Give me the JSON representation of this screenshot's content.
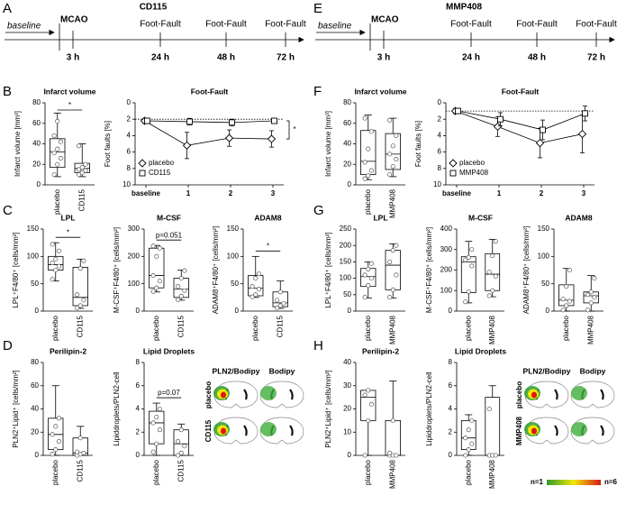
{
  "panels": [
    "A",
    "B",
    "C",
    "D",
    "E",
    "F",
    "G",
    "H"
  ],
  "timelines": [
    {
      "title": "CD115",
      "baseline": "baseline",
      "event": "MCAO",
      "early": "3 h",
      "tests": [
        "Foot-Fault",
        "Foot-Fault",
        "Foot-Fault"
      ],
      "times": [
        "24 h",
        "48 h",
        "72 h"
      ]
    },
    {
      "title": "MMP408",
      "baseline": "baseline",
      "event": "MCAO",
      "early": "3 h",
      "tests": [
        "Foot-Fault",
        "Foot-Fault",
        "Foot-Fault"
      ],
      "times": [
        "24 h",
        "48 h",
        "72 h"
      ]
    }
  ],
  "heatmaps": [
    {
      "columns": [
        "PLN2/Bodipy",
        "Bodipy"
      ],
      "rows": [
        "placebo",
        "CD115"
      ]
    },
    {
      "columns": [
        "PLN2/Bodipy",
        "Bodipy"
      ],
      "rows": [
        "placebo",
        "MMP408"
      ],
      "colorbar": [
        "n=1",
        "n=6"
      ]
    }
  ],
  "chart_data": [
    {
      "type": "box",
      "title": "Infarct volume",
      "ylabel": "Infarct volume [mm³]",
      "categories": [
        "placebo",
        "CD115"
      ],
      "ylim": [
        0,
        80
      ],
      "yticks": [
        0,
        20,
        40,
        60,
        80
      ],
      "annotation": "*",
      "boxes": [
        {
          "min": 8,
          "q1": 17,
          "median": 32,
          "q3": 45,
          "max": 70,
          "points": [
            10,
            20,
            26,
            31,
            35,
            42,
            48,
            62
          ]
        },
        {
          "min": 8,
          "q1": 12,
          "median": 16,
          "q3": 21,
          "max": 40,
          "points": [
            10,
            12,
            14,
            15,
            17,
            20,
            38
          ]
        }
      ]
    },
    {
      "type": "line",
      "title": "Foot-Fault",
      "ylabel": "Foot faults [%]",
      "categories": [
        "baseline",
        "1",
        "2",
        "3"
      ],
      "ylim": [
        0,
        10
      ],
      "y_reversed": true,
      "yticks": [
        0,
        2,
        4,
        6,
        8,
        10
      ],
      "reference": 2,
      "annotation": "*",
      "legend": "lower left",
      "series": [
        {
          "name": "placebo",
          "marker": "diamond",
          "values": [
            2.2,
            5.2,
            4.3,
            4.4
          ],
          "errors": [
            0.3,
            1.6,
            1.0,
            1.0
          ]
        },
        {
          "name": "CD115",
          "marker": "square",
          "values": [
            2.2,
            2.3,
            2.4,
            2.2
          ],
          "errors": [
            0.3,
            0.4,
            0.4,
            0.3
          ]
        }
      ]
    },
    {
      "type": "box",
      "title": "LPL",
      "ylabel": "LPL⁺F4/80⁺ [cells/mm²]",
      "categories": [
        "placebo",
        "CD115"
      ],
      "ylim": [
        0,
        150
      ],
      "yticks": [
        0,
        50,
        100,
        150
      ],
      "annotation": "*",
      "boxes": [
        {
          "min": 55,
          "q1": 75,
          "median": 85,
          "q3": 100,
          "max": 125,
          "points": [
            58,
            75,
            82,
            88,
            95,
            110,
            122
          ]
        },
        {
          "min": 5,
          "q1": 10,
          "median": 25,
          "q3": 80,
          "max": 95,
          "points": [
            6,
            10,
            20,
            30,
            78,
            92
          ]
        }
      ]
    },
    {
      "type": "box",
      "title": "M-CSF",
      "ylabel": "M-CSF⁺F4/80⁺ [cells/mm²]",
      "categories": [
        "placebo",
        "CD115"
      ],
      "ylim": [
        0,
        300
      ],
      "yticks": [
        0,
        100,
        200,
        300
      ],
      "annotation": "p=0.051",
      "boxes": [
        {
          "min": 70,
          "q1": 85,
          "median": 130,
          "q3": 230,
          "max": 240,
          "points": [
            72,
            85,
            110,
            130,
            200,
            230,
            238
          ]
        },
        {
          "min": 40,
          "q1": 50,
          "median": 80,
          "q3": 120,
          "max": 150,
          "points": [
            42,
            55,
            75,
            90,
            120,
            148
          ]
        }
      ]
    },
    {
      "type": "box",
      "title": "ADAM8",
      "ylabel": "ADAM8⁺F4/80⁺ [cells/mm²]",
      "categories": [
        "placebo",
        "CD115"
      ],
      "ylim": [
        0,
        150
      ],
      "yticks": [
        0,
        50,
        100,
        150
      ],
      "annotation": "*",
      "boxes": [
        {
          "min": 25,
          "q1": 28,
          "median": 42,
          "q3": 65,
          "max": 100,
          "points": [
            26,
            30,
            40,
            45,
            60,
            68
          ]
        },
        {
          "min": 5,
          "q1": 8,
          "median": 15,
          "q3": 35,
          "max": 55,
          "points": [
            6,
            10,
            14,
            20,
            35
          ]
        }
      ]
    },
    {
      "type": "box",
      "title": "Perilipin-2",
      "ylabel": "PLN2⁺Lipid⁺ [cells/mm²]",
      "categories": [
        "placebo",
        "CD115"
      ],
      "ylim": [
        0,
        80
      ],
      "yticks": [
        0,
        20,
        40,
        60,
        80
      ],
      "boxes": [
        {
          "min": 0,
          "q1": 5,
          "median": 18,
          "q3": 32,
          "max": 60,
          "points": [
            1,
            5,
            12,
            18,
            25,
            32
          ]
        },
        {
          "min": 0,
          "q1": 0,
          "median": 2,
          "q3": 15,
          "max": 25,
          "points": [
            0,
            1,
            2,
            3,
            15
          ]
        }
      ]
    },
    {
      "type": "box",
      "title": "Lipid Droplets",
      "ylabel": "Lipiddroplets/PLN2-cell",
      "categories": [
        "placebo",
        "CD115"
      ],
      "ylim": [
        0,
        8
      ],
      "yticks": [
        0,
        2,
        4,
        6,
        8
      ],
      "annotation": "p=0.07",
      "boxes": [
        {
          "min": 0,
          "q1": 1,
          "median": 2.8,
          "q3": 3.8,
          "max": 4.5,
          "points": [
            0.3,
            1,
            2.2,
            2.8,
            3.3,
            4
          ]
        },
        {
          "min": 0,
          "q1": 0,
          "median": 1,
          "q3": 2.2,
          "max": 2.7,
          "points": [
            0,
            0.2,
            0.8,
            1.2,
            2.2
          ]
        }
      ]
    },
    {
      "type": "box",
      "title": "Infarct volume",
      "ylabel": "Infarct volume [mm³]",
      "categories": [
        "placebo",
        "MMP408"
      ],
      "ylim": [
        0,
        80
      ],
      "yticks": [
        0,
        20,
        40,
        60,
        80
      ],
      "boxes": [
        {
          "min": 5,
          "q1": 10,
          "median": 23,
          "q3": 53,
          "max": 68,
          "points": [
            6,
            9,
            14,
            22,
            35,
            52,
            65
          ]
        },
        {
          "min": 8,
          "q1": 15,
          "median": 30,
          "q3": 50,
          "max": 65,
          "points": [
            10,
            18,
            25,
            30,
            38,
            48,
            63
          ]
        }
      ]
    },
    {
      "type": "line",
      "title": "Foot-Fault",
      "ylabel": "Foot faults [%]",
      "categories": [
        "baseline",
        "1",
        "2",
        "3"
      ],
      "ylim": [
        0,
        10
      ],
      "y_reversed": true,
      "yticks": [
        0,
        2,
        4,
        6,
        8,
        10
      ],
      "reference": 1,
      "legend": "lower left",
      "series": [
        {
          "name": "placebo",
          "marker": "diamond",
          "values": [
            1,
            2.9,
            4.9,
            3.8
          ],
          "errors": [
            0.3,
            1.2,
            1.8,
            2.3
          ]
        },
        {
          "name": "MMP408",
          "marker": "square",
          "values": [
            1,
            2.0,
            3.3,
            1.3
          ],
          "errors": [
            0.3,
            0.8,
            1.2,
            0.9
          ]
        }
      ]
    },
    {
      "type": "box",
      "title": "LPL",
      "ylabel": "LPL⁺F4/80⁺ [cells/mm²]",
      "categories": [
        "placebo",
        "MMP408"
      ],
      "ylim": [
        0,
        250
      ],
      "yticks": [
        0,
        50,
        100,
        150,
        200,
        250
      ],
      "boxes": [
        {
          "min": 40,
          "q1": 75,
          "median": 105,
          "q3": 130,
          "max": 150,
          "points": [
            42,
            78,
            100,
            110,
            128,
            145
          ]
        },
        {
          "min": 40,
          "q1": 65,
          "median": 140,
          "q3": 185,
          "max": 205,
          "points": [
            42,
            65,
            110,
            150,
            185,
            200
          ]
        }
      ]
    },
    {
      "type": "box",
      "title": "M-CSF",
      "ylabel": "M-CSF⁺F4/80⁺ [cells/mm²]",
      "categories": [
        "placebo",
        "MMP408"
      ],
      "ylim": [
        0,
        400
      ],
      "yticks": [
        0,
        100,
        200,
        300,
        400
      ],
      "boxes": [
        {
          "min": 40,
          "q1": 90,
          "median": 240,
          "q3": 265,
          "max": 340,
          "points": [
            45,
            95,
            220,
            250,
            262,
            300
          ]
        },
        {
          "min": 70,
          "q1": 100,
          "median": 180,
          "q3": 280,
          "max": 350,
          "points": [
            75,
            100,
            170,
            190,
            270,
            340
          ]
        }
      ]
    },
    {
      "type": "box",
      "title": "ADAM8",
      "ylabel": "ADAM8⁺F4/80⁺ [cells/mm²]",
      "categories": [
        "placebo",
        "MMP408"
      ],
      "ylim": [
        0,
        150
      ],
      "yticks": [
        0,
        50,
        100,
        150
      ],
      "boxes": [
        {
          "min": 0,
          "q1": 10,
          "median": 20,
          "q3": 48,
          "max": 78,
          "points": [
            2,
            10,
            18,
            22,
            45,
            75
          ]
        },
        {
          "min": 0,
          "q1": 15,
          "median": 28,
          "q3": 35,
          "max": 65,
          "points": [
            2,
            15,
            25,
            30,
            35,
            60
          ]
        }
      ]
    },
    {
      "type": "box",
      "title": "Perilipin-2",
      "ylabel": "PLN2⁺Lipid⁺ [cells/mm²]",
      "categories": [
        "placebo",
        "MMP408"
      ],
      "ylim": [
        0,
        40
      ],
      "yticks": [
        0,
        10,
        20,
        30,
        40
      ],
      "boxes": [
        {
          "min": 0,
          "q1": 15,
          "median": 25,
          "q3": 28,
          "max": 28,
          "points": [
            0,
            15,
            22,
            26,
            28
          ]
        },
        {
          "min": 0,
          "q1": 0,
          "median": 0,
          "q3": 15,
          "max": 32,
          "points": [
            0,
            0,
            0,
            1,
            15
          ]
        }
      ]
    },
    {
      "type": "box",
      "title": "Lipid Droplets",
      "ylabel": "Lipiddroplets/PLN2-cell",
      "categories": [
        "placebo",
        "MMP408"
      ],
      "ylim": [
        0,
        8
      ],
      "yticks": [
        0,
        2,
        4,
        6,
        8
      ],
      "boxes": [
        {
          "min": 0,
          "q1": 0.5,
          "median": 1.5,
          "q3": 3,
          "max": 3.5,
          "points": [
            0,
            0.5,
            1,
            1.5,
            2.2,
            3
          ]
        },
        {
          "min": 0,
          "q1": 0,
          "median": 0,
          "q3": 5,
          "max": 6,
          "points": [
            0,
            0,
            0,
            4
          ]
        }
      ]
    }
  ]
}
